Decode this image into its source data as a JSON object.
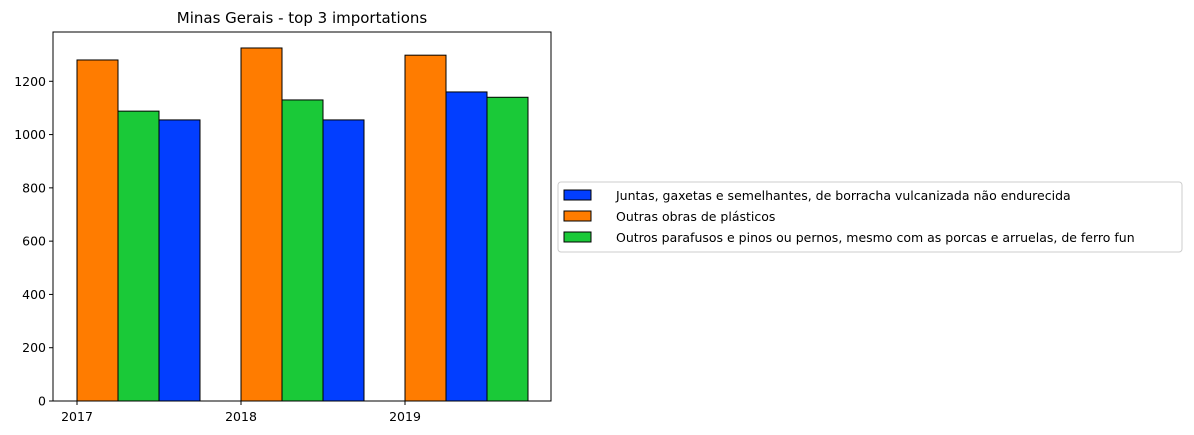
{
  "chart_data": {
    "type": "bar",
    "title": "Minas Gerais - top 3 importations",
    "xlabel": "",
    "ylabel": "",
    "categories": [
      "2017",
      "2018",
      "2019"
    ],
    "ylim": [
      0,
      1385
    ],
    "yticks": [
      0,
      200,
      400,
      600,
      800,
      1000,
      1200
    ],
    "grid": false,
    "legend_position": "center-right outside",
    "bars": [
      {
        "category": "2017",
        "series": "Outras obras de plásticos",
        "color": "#ff7c00",
        "value": 1280
      },
      {
        "category": "2017",
        "series": "Outros parafusos e pinos ou pernos, mesmo com as porcas e arruelas, de ferro fun",
        "color": "#1ac938",
        "value": 1088
      },
      {
        "category": "2017",
        "series": "Juntas, gaxetas e semelhantes, de borracha vulcanizada não endurecida",
        "color": "#023eff",
        "value": 1055
      },
      {
        "category": "2018",
        "series": "Outras obras de plásticos",
        "color": "#ff7c00",
        "value": 1325
      },
      {
        "category": "2018",
        "series": "Outros parafusos e pinos ou pernos, mesmo com as porcas e arruelas, de ferro fun",
        "color": "#1ac938",
        "value": 1130
      },
      {
        "category": "2018",
        "series": "Juntas, gaxetas e semelhantes, de borracha vulcanizada não endurecida",
        "color": "#023eff",
        "value": 1055
      },
      {
        "category": "2019",
        "series": "Outras obras de plásticos",
        "color": "#ff7c00",
        "value": 1298
      },
      {
        "category": "2019",
        "series": "Juntas, gaxetas e semelhantes, de borracha vulcanizada não endurecida",
        "color": "#023eff",
        "value": 1160
      },
      {
        "category": "2019",
        "series": "Outros parafusos e pinos ou pernos, mesmo com as porcas e arruelas, de ferro fun",
        "color": "#1ac938",
        "value": 1140
      }
    ],
    "legend": [
      {
        "name": "Juntas, gaxetas e semelhantes, de borracha vulcanizada não endurecida",
        "color": "#023eff"
      },
      {
        "name": "Outras obras de plásticos",
        "color": "#ff7c00"
      },
      {
        "name": "Outros parafusos e pinos ou pernos, mesmo com as porcas e arruelas, de ferro fun",
        "color": "#1ac938"
      }
    ]
  }
}
